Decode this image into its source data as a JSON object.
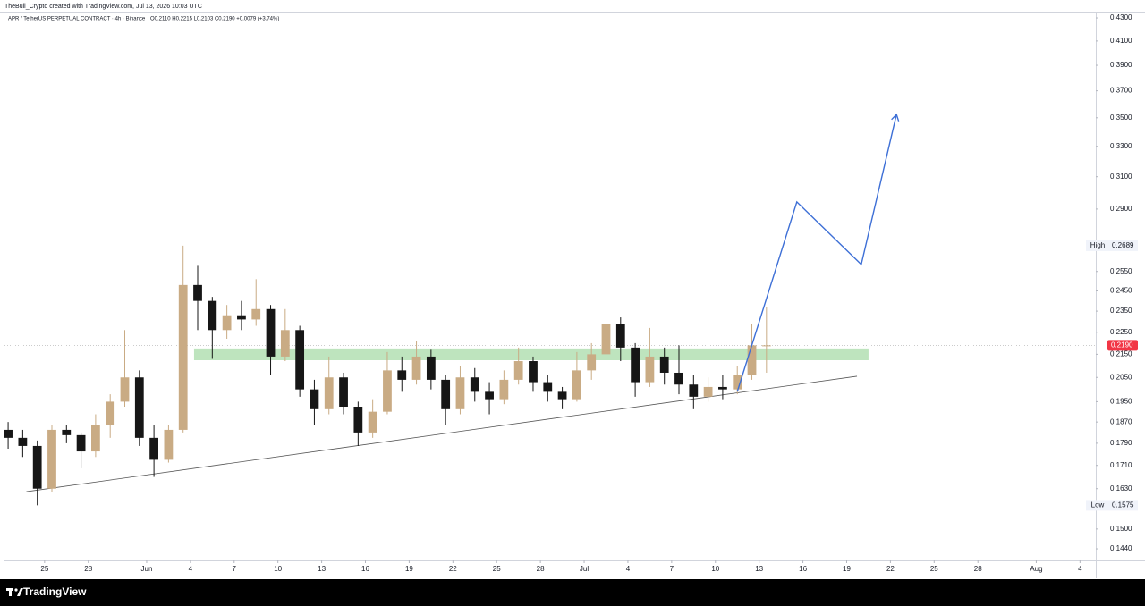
{
  "header": {
    "credit": "TheBull_Crypto created with TradingView.com, Jul 13, 2026 10:03 UTC"
  },
  "footer": {
    "brand": "TradingView"
  },
  "chart_data": {
    "type": "candlestick",
    "symbol": "APR / TetherUS PERPETUAL CONTRACT · 4h · Binance",
    "legend_values": "O0.2110 H0.2215 L0.2103 C0.2190 +0.0079 (+3.74%)",
    "log_scale": true,
    "grid": false,
    "up_color": "#c9ab84",
    "down_color": "#161616",
    "xlim": [
      "2026-05-22T06:00",
      "2026-08-05T02:00"
    ],
    "ylim": [
      0.1406,
      0.4348
    ],
    "xticks": [
      {
        "value": "2026-05-25T00:00",
        "label": "25"
      },
      {
        "value": "2026-05-28T00:00",
        "label": "28"
      },
      {
        "value": "2026-06-01T00:00",
        "label": "Jun"
      },
      {
        "value": "2026-06-04T00:00",
        "label": "4"
      },
      {
        "value": "2026-06-07T00:00",
        "label": "7"
      },
      {
        "value": "2026-06-10T00:00",
        "label": "10"
      },
      {
        "value": "2026-06-13T00:00",
        "label": "13"
      },
      {
        "value": "2026-06-16T00:00",
        "label": "16"
      },
      {
        "value": "2026-06-19T00:00",
        "label": "19"
      },
      {
        "value": "2026-06-22T00:00",
        "label": "22"
      },
      {
        "value": "2026-06-25T00:00",
        "label": "25"
      },
      {
        "value": "2026-06-28T00:00",
        "label": "28"
      },
      {
        "value": "2026-07-01T00:00",
        "label": "Jul"
      },
      {
        "value": "2026-07-04T00:00",
        "label": "4"
      },
      {
        "value": "2026-07-07T00:00",
        "label": "7"
      },
      {
        "value": "2026-07-10T00:00",
        "label": "10"
      },
      {
        "value": "2026-07-13T00:00",
        "label": "13"
      },
      {
        "value": "2026-07-16T00:00",
        "label": "16"
      },
      {
        "value": "2026-07-19T00:00",
        "label": "19"
      },
      {
        "value": "2026-07-22T00:00",
        "label": "22"
      },
      {
        "value": "2026-07-25T00:00",
        "label": "25"
      },
      {
        "value": "2026-07-28T00:00",
        "label": "28"
      },
      {
        "value": "2026-08-01T00:00",
        "label": "Aug"
      },
      {
        "value": "2026-08-04T00:00",
        "label": "4"
      }
    ],
    "yticks": [
      {
        "value": 0.43,
        "label": "0.4300"
      },
      {
        "value": 0.41,
        "label": "0.4100"
      },
      {
        "value": 0.39,
        "label": "0.3900"
      },
      {
        "value": 0.37,
        "label": "0.3700"
      },
      {
        "value": 0.35,
        "label": "0.3500"
      },
      {
        "value": 0.33,
        "label": "0.3300"
      },
      {
        "value": 0.31,
        "label": "0.3100"
      },
      {
        "value": 0.29,
        "label": "0.2900"
      },
      {
        "value": 0.255,
        "label": "0.2550"
      },
      {
        "value": 0.245,
        "label": "0.2450"
      },
      {
        "value": 0.235,
        "label": "0.2350"
      },
      {
        "value": 0.225,
        "label": "0.2250"
      },
      {
        "value": 0.215,
        "label": "0.2150"
      },
      {
        "value": 0.205,
        "label": "0.2050"
      },
      {
        "value": 0.195,
        "label": "0.1950"
      },
      {
        "value": 0.187,
        "label": "0.1870"
      },
      {
        "value": 0.179,
        "label": "0.1790"
      },
      {
        "value": 0.171,
        "label": "0.1710"
      },
      {
        "value": 0.163,
        "label": "0.1630"
      },
      {
        "value": 0.15,
        "label": "0.1500"
      },
      {
        "value": 0.144,
        "label": "0.1440"
      }
    ],
    "x": [
      "2026-05-22T12:00",
      "2026-05-23T12:00",
      "2026-05-24T12:00",
      "2026-05-25T12:00",
      "2026-05-26T12:00",
      "2026-05-27T12:00",
      "2026-05-28T12:00",
      "2026-05-29T12:00",
      "2026-05-30T12:00",
      "2026-05-31T12:00",
      "2026-06-01T12:00",
      "2026-06-02T12:00",
      "2026-06-03T12:00",
      "2026-06-04T12:00",
      "2026-06-05T12:00",
      "2026-06-06T12:00",
      "2026-06-07T12:00",
      "2026-06-08T12:00",
      "2026-06-09T12:00",
      "2026-06-10T12:00",
      "2026-06-11T12:00",
      "2026-06-12T12:00",
      "2026-06-13T12:00",
      "2026-06-14T12:00",
      "2026-06-15T12:00",
      "2026-06-16T12:00",
      "2026-06-17T12:00",
      "2026-06-18T12:00",
      "2026-06-19T12:00",
      "2026-06-20T12:00",
      "2026-06-21T12:00",
      "2026-06-22T12:00",
      "2026-06-23T12:00",
      "2026-06-24T12:00",
      "2026-06-25T12:00",
      "2026-06-26T12:00",
      "2026-06-27T12:00",
      "2026-06-28T12:00",
      "2026-06-29T12:00",
      "2026-06-30T12:00",
      "2026-07-01T12:00",
      "2026-07-02T12:00",
      "2026-07-03T12:00",
      "2026-07-04T12:00",
      "2026-07-05T12:00",
      "2026-07-06T12:00",
      "2026-07-07T12:00",
      "2026-07-08T12:00",
      "2026-07-09T12:00",
      "2026-07-10T12:00",
      "2026-07-11T12:00",
      "2026-07-12T12:00",
      "2026-07-13T12:00"
    ],
    "open": [
      0.184,
      0.181,
      0.178,
      0.163,
      0.184,
      0.182,
      0.176,
      0.186,
      0.195,
      0.205,
      0.181,
      0.173,
      0.184,
      0.248,
      0.24,
      0.226,
      0.233,
      0.231,
      0.236,
      0.214,
      0.226,
      0.2,
      0.192,
      0.205,
      0.193,
      0.183,
      0.191,
      0.208,
      0.204,
      0.214,
      0.204,
      0.192,
      0.205,
      0.199,
      0.196,
      0.204,
      0.212,
      0.203,
      0.199,
      0.196,
      0.208,
      0.215,
      0.229,
      0.218,
      0.203,
      0.214,
      0.207,
      0.202,
      0.197,
      0.201,
      0.2,
      0.206,
      0.219
    ],
    "high": [
      0.187,
      0.184,
      0.18,
      0.186,
      0.186,
      0.183,
      0.19,
      0.198,
      0.226,
      0.208,
      0.186,
      0.186,
      0.2689,
      0.258,
      0.242,
      0.238,
      0.24,
      0.251,
      0.238,
      0.236,
      0.228,
      0.204,
      0.214,
      0.207,
      0.195,
      0.196,
      0.216,
      0.214,
      0.221,
      0.217,
      0.206,
      0.21,
      0.209,
      0.203,
      0.208,
      0.218,
      0.214,
      0.206,
      0.201,
      0.216,
      0.22,
      0.241,
      0.232,
      0.22,
      0.227,
      0.218,
      0.219,
      0.206,
      0.205,
      0.206,
      0.21,
      0.229,
      0.237
    ],
    "low": [
      0.177,
      0.174,
      0.1575,
      0.162,
      0.179,
      0.17,
      0.174,
      0.181,
      0.193,
      0.178,
      0.167,
      0.172,
      0.183,
      0.226,
      0.213,
      0.222,
      0.226,
      0.228,
      0.206,
      0.212,
      0.197,
      0.186,
      0.19,
      0.19,
      0.178,
      0.181,
      0.19,
      0.199,
      0.202,
      0.2,
      0.186,
      0.19,
      0.195,
      0.19,
      0.194,
      0.202,
      0.199,
      0.195,
      0.192,
      0.195,
      0.204,
      0.213,
      0.212,
      0.197,
      0.201,
      0.202,
      0.198,
      0.192,
      0.195,
      0.196,
      0.198,
      0.204,
      0.207
    ],
    "close": [
      0.181,
      0.178,
      0.163,
      0.184,
      0.182,
      0.176,
      0.186,
      0.195,
      0.205,
      0.181,
      0.173,
      0.184,
      0.248,
      0.24,
      0.226,
      0.233,
      0.231,
      0.236,
      0.214,
      0.226,
      0.2,
      0.192,
      0.205,
      0.193,
      0.183,
      0.191,
      0.208,
      0.204,
      0.214,
      0.204,
      0.192,
      0.205,
      0.199,
      0.196,
      0.204,
      0.212,
      0.203,
      0.199,
      0.196,
      0.208,
      0.215,
      0.229,
      0.218,
      0.203,
      0.214,
      0.207,
      0.202,
      0.197,
      0.201,
      0.2,
      0.206,
      0.219,
      0.219
    ],
    "last_price": {
      "value": 0.219,
      "label": "0.2190",
      "color": "#f23645"
    },
    "markers": [
      {
        "name": "High",
        "value": 0.2689
      },
      {
        "name": "Low",
        "value": 0.1575
      }
    ],
    "zone": {
      "x": [
        "2026-06-04T06:00",
        "2026-07-20T12:00"
      ],
      "y": [
        0.2124,
        0.2176
      ],
      "color": "#a8dba8"
    },
    "trendline": {
      "x": [
        "2026-05-23T18:00",
        "2026-07-19T17:00"
      ],
      "y": [
        0.162,
        0.2055
      ],
      "color": "#555555"
    },
    "projection": {
      "x": [
        "2026-07-11T12:00",
        "2026-07-15T14:00",
        "2026-07-20T00:00",
        "2026-07-22T10:00"
      ],
      "y": [
        0.1991,
        0.2943,
        0.2587,
        0.3524
      ],
      "color": "#3d6fd6"
    }
  }
}
